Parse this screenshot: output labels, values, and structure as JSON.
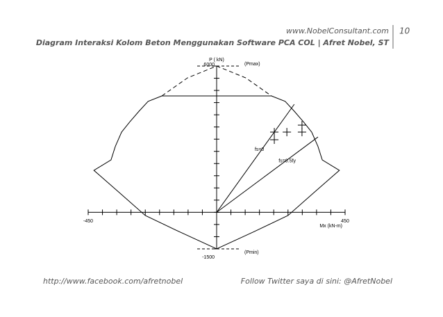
{
  "header": {
    "site": "www.NobelConsultant.com",
    "page": "10",
    "title": "Diagram Interaksi Kolom Beton Menggunakan Software PCA COL | Afret Nobel, ST"
  },
  "footer": {
    "left": "http://www.facebook.com/afretnobel",
    "right": "Follow Twitter saya di sini: @AfretNobel"
  },
  "chart_data": {
    "type": "interaction",
    "xlabel": "Mx (kN-m)",
    "ylabel": "P ( kN)",
    "xlim": [
      -450,
      450
    ],
    "ylim": [
      -1500,
      6000
    ],
    "xticks": [
      -450,
      450
    ],
    "yticks": [
      -1500,
      6000
    ],
    "xminor": [
      -450,
      -400,
      -350,
      -300,
      -250,
      -200,
      -150,
      -100,
      -50,
      0,
      50,
      100,
      150,
      200,
      250,
      300,
      350,
      400,
      450
    ],
    "yminor": [
      -1500,
      -1000,
      -500,
      0,
      500,
      1000,
      1500,
      2000,
      2500,
      3000,
      3500,
      4000,
      4500,
      5000,
      5500,
      6000
    ],
    "lines": [
      {
        "dash": false,
        "x": [
          -192,
          -240,
          -272,
          -305,
          -333,
          -355,
          -370,
          -430,
          -340,
          -250,
          -130,
          0,
          130,
          250,
          340,
          430,
          370,
          355,
          333,
          305,
          272,
          240,
          192
        ],
        "y": [
          4774,
          4550,
          4146,
          3700,
          3290,
          2700,
          2150,
          1722,
          800,
          -130,
          -800,
          -1500,
          -800,
          -130,
          800,
          1722,
          2150,
          2700,
          3290,
          3700,
          4146,
          4550,
          4774
        ]
      },
      {
        "dash": true,
        "x": [
          -192,
          -102,
          0,
          102,
          192
        ],
        "y": [
          4774,
          5515,
          6000,
          5515,
          4774
        ]
      },
      {
        "dash": false,
        "x": [
          -192,
          192
        ],
        "y": [
          4774,
          4774
        ]
      }
    ],
    "radials": [
      {
        "label": "fs=0",
        "x": [
          0,
          272
        ],
        "y": [
          0,
          4431
        ]
      },
      {
        "label": "fs=0.5fy",
        "x": [
          0,
          355
        ],
        "y": [
          0,
          3090
        ]
      }
    ],
    "points": {
      "x": [
        202,
        202,
        246,
        299,
        299
      ],
      "y": [
        3290,
        2977,
        3290,
        3575,
        3290
      ]
    },
    "refs": [
      {
        "label": "(Pmax)",
        "value": 6000
      },
      {
        "label": "(Pmin)",
        "value": -1500
      }
    ]
  }
}
